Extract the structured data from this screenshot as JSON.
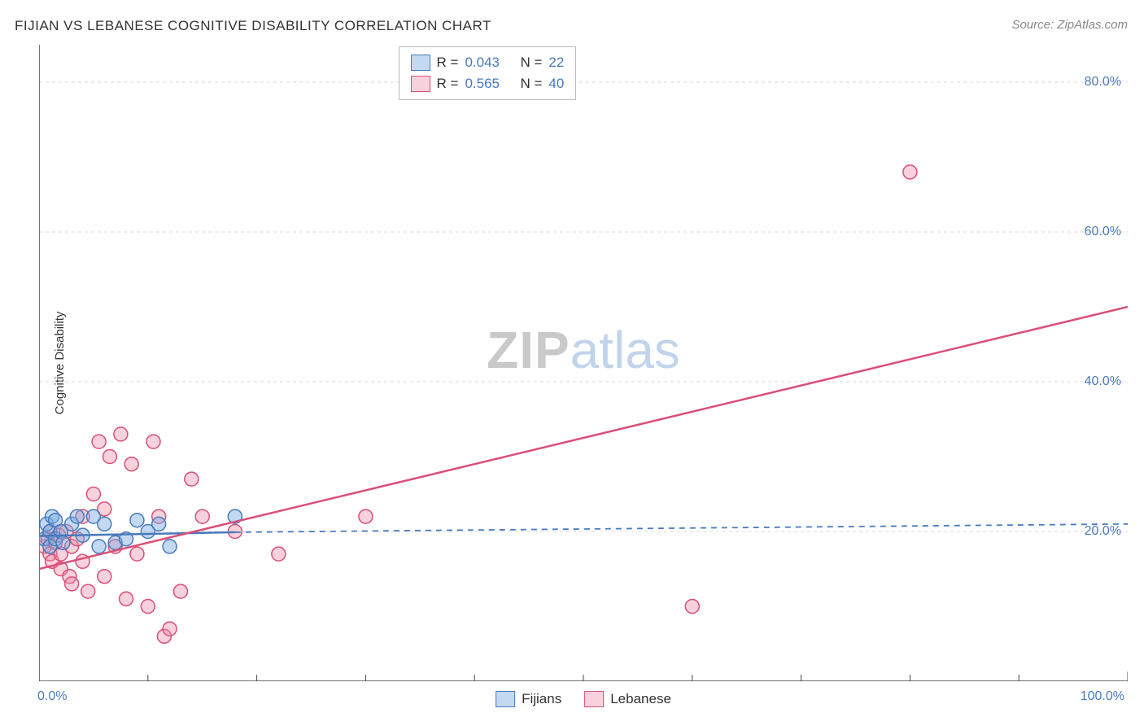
{
  "title": "FIJIAN VS LEBANESE COGNITIVE DISABILITY CORRELATION CHART",
  "source": "Source: ZipAtlas.com",
  "ylabel": "Cognitive Disability",
  "watermark": {
    "part1": "ZIP",
    "part2": "atlas"
  },
  "axes": {
    "xmin": 0,
    "xmax": 100,
    "ymin": 0,
    "ymax": 85,
    "x_tick_major": [
      0,
      100
    ],
    "x_tick_minor": [
      10,
      20,
      30,
      40,
      50,
      60,
      70,
      80,
      90
    ],
    "x_tick_labels": {
      "0": "0.0%",
      "100": "100.0%"
    },
    "y_grid": [
      20,
      40,
      60,
      80
    ],
    "y_tick_labels": {
      "20": "20.0%",
      "40": "40.0%",
      "60": "60.0%",
      "80": "80.0%"
    },
    "axis_color": "#444",
    "grid_color": "#d8d8d8",
    "grid_dash": "4,4"
  },
  "series": {
    "fijians": {
      "label": "Fijians",
      "fill": "rgba(120,170,225,0.45)",
      "stroke": "#4a7abc",
      "R": "0.043",
      "N": "22",
      "points": [
        [
          0.5,
          19
        ],
        [
          0.7,
          21
        ],
        [
          1,
          18
        ],
        [
          1,
          20
        ],
        [
          1.2,
          22
        ],
        [
          1.5,
          19
        ],
        [
          1.5,
          21.5
        ],
        [
          2,
          20
        ],
        [
          2.2,
          18.5
        ],
        [
          3,
          21
        ],
        [
          3.5,
          22
        ],
        [
          4,
          19.5
        ],
        [
          5,
          22
        ],
        [
          5.5,
          18
        ],
        [
          6,
          21
        ],
        [
          7,
          18.5
        ],
        [
          8,
          19
        ],
        [
          9,
          21.5
        ],
        [
          10,
          20
        ],
        [
          11,
          21
        ],
        [
          12,
          18
        ],
        [
          18,
          22
        ]
      ],
      "trend": {
        "x1": 0,
        "y1": 19.4,
        "x2": 18,
        "y2": 19.9,
        "dash_x2": 100,
        "dash_y2": 21.0
      }
    },
    "lebanese": {
      "label": "Lebanese",
      "fill": "rgba(235,140,165,0.40)",
      "stroke": "#d94f78",
      "R": "0.565",
      "N": "40",
      "points": [
        [
          0.5,
          18
        ],
        [
          0.8,
          19
        ],
        [
          1,
          17
        ],
        [
          1,
          20
        ],
        [
          1.2,
          16
        ],
        [
          1.5,
          18.5
        ],
        [
          1.8,
          19.5
        ],
        [
          2,
          17
        ],
        [
          2,
          15
        ],
        [
          2.5,
          20
        ],
        [
          2.8,
          14
        ],
        [
          3,
          18
        ],
        [
          3,
          13
        ],
        [
          3.5,
          19
        ],
        [
          4,
          16
        ],
        [
          4,
          22
        ],
        [
          4.5,
          12
        ],
        [
          5,
          25
        ],
        [
          5.5,
          32
        ],
        [
          6,
          23
        ],
        [
          6,
          14
        ],
        [
          6.5,
          30
        ],
        [
          7,
          18
        ],
        [
          7.5,
          33
        ],
        [
          8,
          11
        ],
        [
          8.5,
          29
        ],
        [
          9,
          17
        ],
        [
          10,
          10
        ],
        [
          10.5,
          32
        ],
        [
          11,
          22
        ],
        [
          11.5,
          6
        ],
        [
          12,
          7
        ],
        [
          13,
          12
        ],
        [
          14,
          27
        ],
        [
          15,
          22
        ],
        [
          18,
          20
        ],
        [
          22,
          17
        ],
        [
          30,
          22
        ],
        [
          60,
          10
        ],
        [
          80,
          68
        ]
      ],
      "trend": {
        "x1": 0,
        "y1": 15,
        "x2": 100,
        "y2": 50
      }
    }
  },
  "legend_top": {
    "r_label": "R =",
    "n_label": "N ="
  },
  "marker_radius": 8.5,
  "marker_stroke_width": 1.5,
  "trend_width": 2.5
}
